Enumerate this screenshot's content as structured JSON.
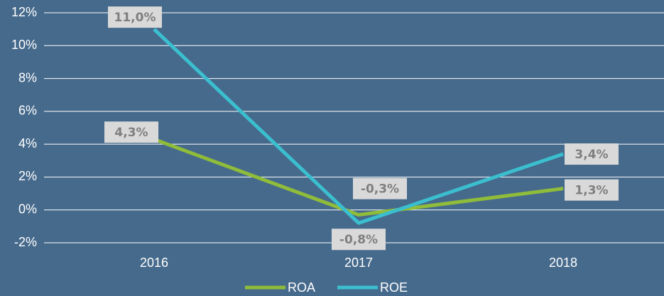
{
  "chart_data": {
    "type": "line",
    "categories": [
      "2016",
      "2017",
      "2018"
    ],
    "series": [
      {
        "name": "ROA",
        "color": "#8fbc3a",
        "values": [
          4.3,
          -0.3,
          1.3
        ],
        "value_labels": [
          "4,3%",
          "-0,3%",
          "1,3%"
        ]
      },
      {
        "name": "ROE",
        "color": "#3bbfcf",
        "values": [
          11.0,
          -0.8,
          3.4
        ],
        "value_labels": [
          "11,0%",
          "-0,8%",
          "3,4%"
        ]
      }
    ],
    "ylim": [
      -2,
      12
    ],
    "yticks": [
      {
        "value": -2,
        "label": "-2%"
      },
      {
        "value": 0,
        "label": "0%"
      },
      {
        "value": 2,
        "label": "2%"
      },
      {
        "value": 4,
        "label": "4%"
      },
      {
        "value": 6,
        "label": "6%"
      },
      {
        "value": 8,
        "label": "8%"
      },
      {
        "value": 10,
        "label": "10%"
      },
      {
        "value": 12,
        "label": "12%"
      }
    ],
    "grid": true,
    "legend": "bottom"
  }
}
